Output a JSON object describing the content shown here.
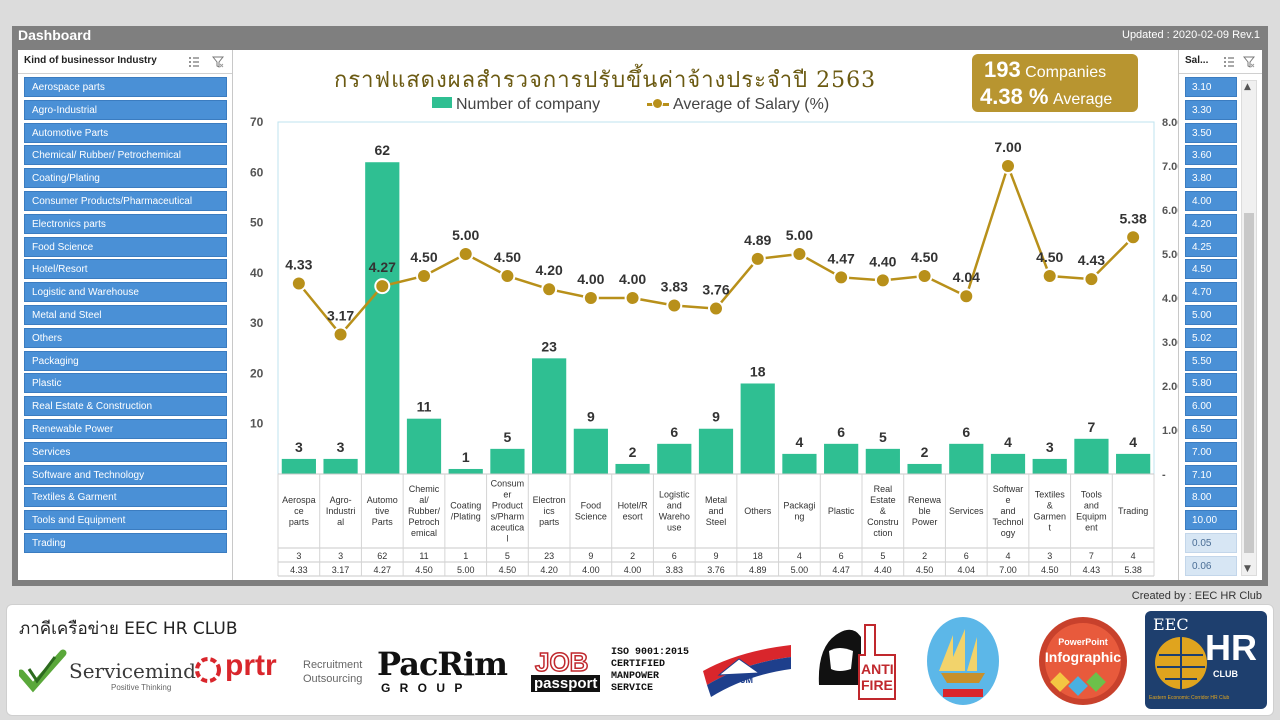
{
  "header": {
    "title": "Dashboard",
    "updated": "Updated : 2020-02-09 Rev.1"
  },
  "left_slicer": {
    "title": "Kind of businessor Industry",
    "items": [
      "Aerospace parts",
      "Agro-Industrial",
      "Automotive Parts",
      "Chemical/ Rubber/ Petrochemical",
      "Coating/Plating",
      "Consumer Products/Pharmaceutical",
      "Electronics parts",
      "Food Science",
      "Hotel/Resort",
      "Logistic and Warehouse",
      "Metal and Steel",
      "Others",
      "Packaging",
      "Plastic",
      "Real Estate & Construction",
      "Renewable Power",
      "Services",
      "Software and Technology",
      "Textiles & Garment",
      "Tools and Equipment",
      "Trading"
    ]
  },
  "right_slicer": {
    "title": "Sal...",
    "items": [
      "3.10",
      "3.30",
      "3.50",
      "3.60",
      "3.80",
      "4.00",
      "4.20",
      "4.25",
      "4.50",
      "4.70",
      "5.00",
      "5.02",
      "5.50",
      "5.80",
      "6.00",
      "6.50",
      "7.00",
      "7.10",
      "8.00",
      "10.00"
    ],
    "dim_items": [
      "0.05",
      "0.06"
    ]
  },
  "kpi": {
    "companies_value": "193",
    "companies_label": "Companies",
    "average_value": "4.38 %",
    "average_label": "Average"
  },
  "colors": {
    "bar": "#2fbf92",
    "line": "#b8901a",
    "slicer": "#4a90d6",
    "kpi_bg": "#b89530",
    "title": "#6b5a12"
  },
  "chart_data": {
    "type": "bar+line",
    "title": "กราฟแสดงผลสำรวจการปรับขึ้นค่าจ้างประจำปี 2563",
    "legend_placement": "top",
    "categories": [
      "Aerospa ce parts",
      "Agro- Industri al",
      "Automo tive Parts",
      "Chemic al/ Rubber/ Petroch emical",
      "Coating /Plating",
      "Consum er Product s/Pharm aceutica l",
      "Electron ics parts",
      "Food Science",
      "Hotel/R esort",
      "Logistic and Wareho use",
      "Metal and Steel",
      "Others",
      "Packagi ng",
      "Plastic",
      "Real Estate & Constru ction",
      "Renewa ble Power",
      "Services",
      "Softwar e and Technol ogy",
      "Textiles & Garmen t",
      "Tools and Equipm ent",
      "Trading"
    ],
    "series": [
      {
        "name": "Number of company",
        "type": "bar",
        "axis": "left",
        "values": [
          3,
          3,
          62,
          11,
          1,
          5,
          23,
          9,
          2,
          6,
          9,
          18,
          4,
          6,
          5,
          2,
          6,
          4,
          3,
          7,
          4
        ]
      },
      {
        "name": "Average of Salary (%)",
        "type": "line",
        "axis": "right",
        "values": [
          4.33,
          3.17,
          4.27,
          4.5,
          5.0,
          4.5,
          4.2,
          4.0,
          4.0,
          3.83,
          3.76,
          4.89,
          5.0,
          4.47,
          4.4,
          4.5,
          4.04,
          7.0,
          4.5,
          4.43,
          5.38
        ]
      }
    ],
    "table_row1": [
      "3",
      "3",
      "62",
      "11",
      "1",
      "5",
      "23",
      "9",
      "2",
      "6",
      "9",
      "18",
      "4",
      "6",
      "5",
      "2",
      "6",
      "4",
      "3",
      "7",
      "4"
    ],
    "table_row2": [
      "4.33",
      "3.17",
      "4.27",
      "4.50",
      "5.00",
      "4.50",
      "4.20",
      "4.00",
      "4.00",
      "3.83",
      "3.76",
      "4.89",
      "5.00",
      "4.47",
      "4.40",
      "4.50",
      "4.04",
      "7.00",
      "4.50",
      "4.43",
      "5.38"
    ],
    "y_left": {
      "ylim": [
        0,
        70
      ],
      "ticks": [
        "10",
        "20",
        "30",
        "40",
        "50",
        "60",
        "70"
      ]
    },
    "y_right": {
      "ylim": [
        0,
        8
      ],
      "ticks": [
        "-",
        "1.00",
        "2.00",
        "3.00",
        "4.00",
        "5.00",
        "6.00",
        "7.00",
        "8.00"
      ]
    },
    "grid": false
  },
  "footer": {
    "created": "Created by : EEC HR Club",
    "network_title": "ภาคีเครือข่าย EEC HR CLUB",
    "logos": [
      {
        "name": "servicemind",
        "text": "Servicemind",
        "sub": "Positive Thinking"
      },
      {
        "name": "prtr",
        "text": "prtr",
        "sub1": "Recruitment",
        "sub2": "Outsourcing"
      },
      {
        "name": "pacrim",
        "text": "PacRim",
        "sub": "G R O U P"
      },
      {
        "name": "jobpassport",
        "text": "JOB",
        "sub": "passport"
      },
      {
        "name": "iso",
        "l1": "ISO 9001:2015",
        "l2": "CERTIFIED",
        "l3": "MANPOWER",
        "l4": "SERVICE"
      },
      {
        "name": "fjm",
        "text": "FJM"
      },
      {
        "name": "antifire",
        "l1": "ANTI",
        "l2": "FIRE"
      },
      {
        "name": "ship",
        "text": ""
      },
      {
        "name": "powerpoint",
        "l1": "PowerPoint",
        "l2": "Infographic"
      },
      {
        "name": "eechrclub",
        "l1": "EEC",
        "l2": "HR",
        "l3": "CLUB",
        "l4": "Eastern Economic Corridor HR Club"
      }
    ]
  }
}
